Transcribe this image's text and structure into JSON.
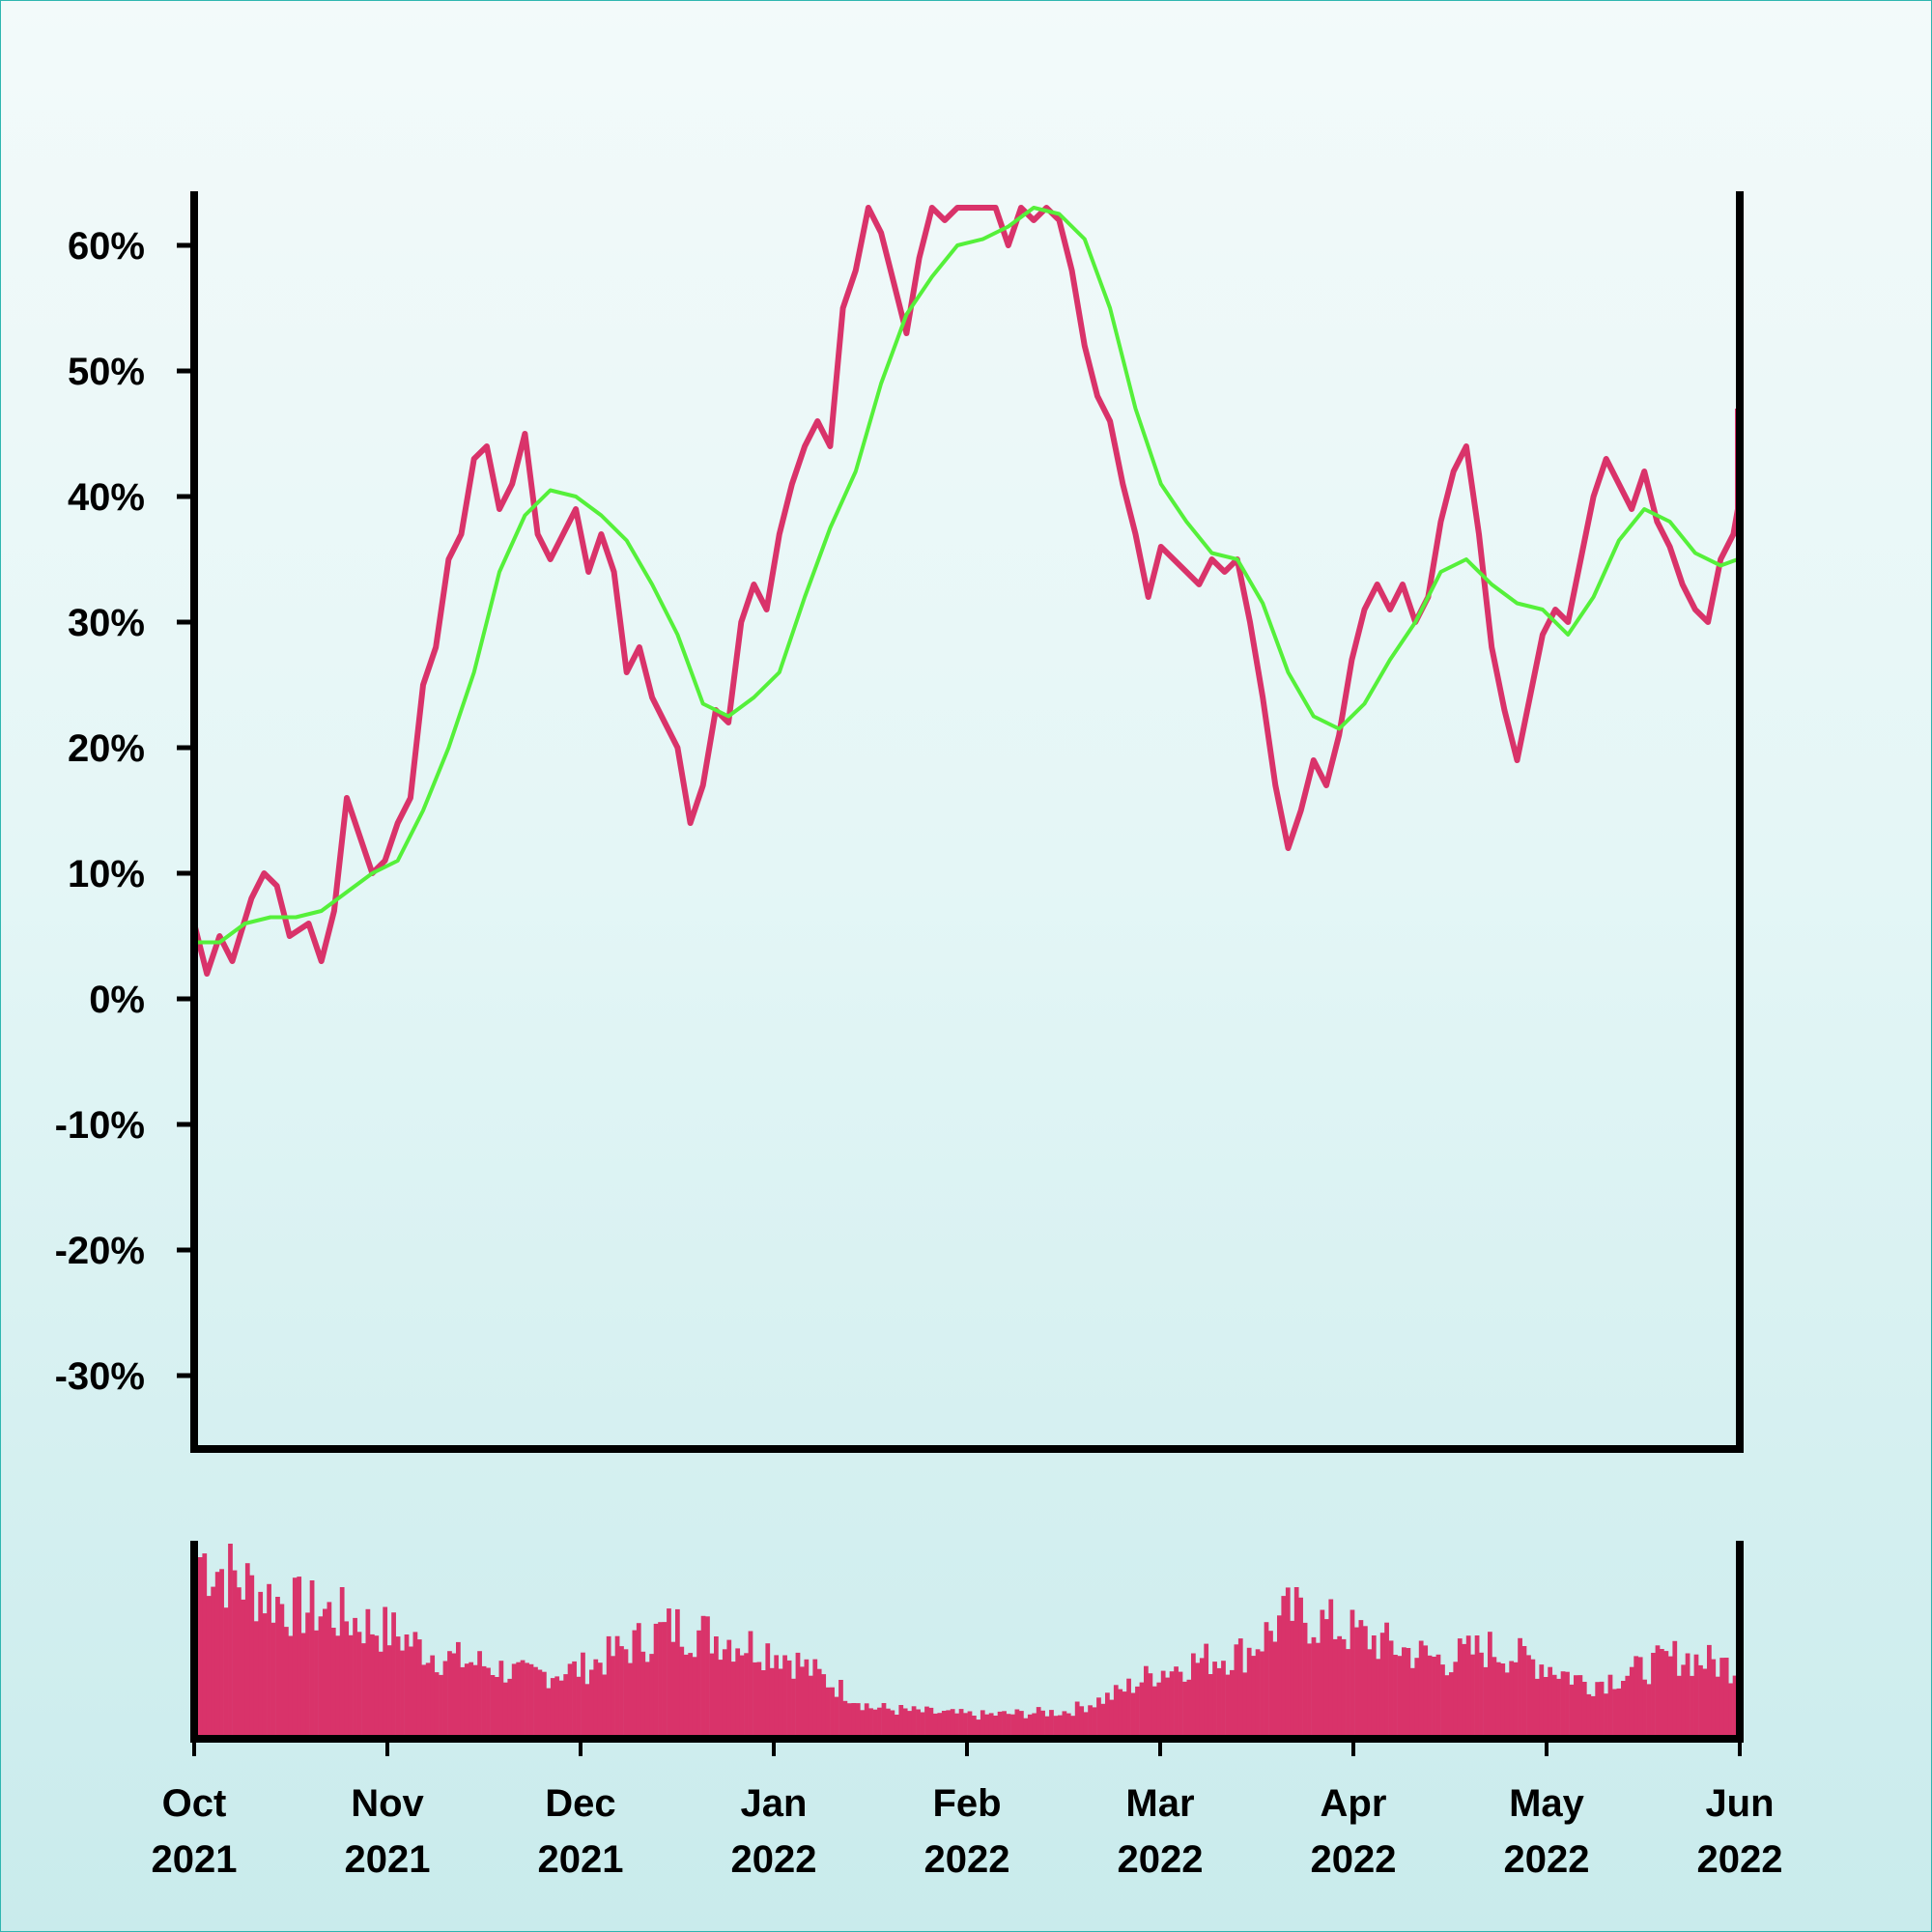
{
  "colors": {
    "price_line": "#d9336a",
    "moving_average": "#55f03a",
    "volume_bars": "#d9336a",
    "axes": "#000000",
    "background_top": "#f3fafa",
    "background_bottom": "#c9ebec"
  },
  "chart_data": [
    {
      "type": "line",
      "title": "",
      "xlabel": "",
      "ylabel": "",
      "ylim": [
        -36,
        64
      ],
      "y_ticks": [
        "60%",
        "50%",
        "40%",
        "30%",
        "20%",
        "10%",
        "0%",
        "-10%",
        "-20%",
        "-30%"
      ],
      "y_tick_values": [
        60,
        50,
        40,
        30,
        20,
        10,
        0,
        -10,
        -20,
        -30
      ],
      "grid": false,
      "legend": "none",
      "series": [
        {
          "key": "price",
          "color": "#d9336a",
          "points": [
            [
              "2021-10-01",
              6
            ],
            [
              "2021-10-03",
              2
            ],
            [
              "2021-10-05",
              5
            ],
            [
              "2021-10-07",
              3
            ],
            [
              "2021-10-10",
              8
            ],
            [
              "2021-10-12",
              10
            ],
            [
              "2021-10-14",
              9
            ],
            [
              "2021-10-16",
              5
            ],
            [
              "2021-10-19",
              6
            ],
            [
              "2021-10-21",
              3
            ],
            [
              "2021-10-23",
              7
            ],
            [
              "2021-10-25",
              16
            ],
            [
              "2021-10-27",
              13
            ],
            [
              "2021-10-29",
              10
            ],
            [
              "2021-10-31",
              11
            ],
            [
              "2021-11-02",
              14
            ],
            [
              "2021-11-04",
              16
            ],
            [
              "2021-11-06",
              25
            ],
            [
              "2021-11-08",
              28
            ],
            [
              "2021-11-10",
              35
            ],
            [
              "2021-11-12",
              37
            ],
            [
              "2021-11-14",
              43
            ],
            [
              "2021-11-16",
              44
            ],
            [
              "2021-11-18",
              39
            ],
            [
              "2021-11-20",
              41
            ],
            [
              "2021-11-22",
              45
            ],
            [
              "2021-11-24",
              37
            ],
            [
              "2021-11-26",
              35
            ],
            [
              "2021-11-28",
              37
            ],
            [
              "2021-11-30",
              39
            ],
            [
              "2021-12-02",
              34
            ],
            [
              "2021-12-04",
              37
            ],
            [
              "2021-12-06",
              34
            ],
            [
              "2021-12-08",
              26
            ],
            [
              "2021-12-10",
              28
            ],
            [
              "2021-12-12",
              24
            ],
            [
              "2021-12-14",
              22
            ],
            [
              "2021-12-16",
              20
            ],
            [
              "2021-12-18",
              14
            ],
            [
              "2021-12-20",
              17
            ],
            [
              "2021-12-22",
              23
            ],
            [
              "2021-12-24",
              22
            ],
            [
              "2021-12-26",
              30
            ],
            [
              "2021-12-28",
              33
            ],
            [
              "2021-12-30",
              31
            ],
            [
              "2022-01-01",
              37
            ],
            [
              "2022-01-03",
              41
            ],
            [
              "2022-01-05",
              44
            ],
            [
              "2022-01-07",
              46
            ],
            [
              "2022-01-09",
              44
            ],
            [
              "2022-01-11",
              55
            ],
            [
              "2022-01-13",
              58
            ],
            [
              "2022-01-15",
              63
            ],
            [
              "2022-01-17",
              61
            ],
            [
              "2022-01-19",
              57
            ],
            [
              "2022-01-21",
              53
            ],
            [
              "2022-01-23",
              59
            ],
            [
              "2022-01-25",
              63
            ],
            [
              "2022-01-27",
              62
            ],
            [
              "2022-01-29",
              63
            ],
            [
              "2022-01-31",
              63
            ],
            [
              "2022-02-02",
              63
            ],
            [
              "2022-02-04",
              63
            ],
            [
              "2022-02-06",
              60
            ],
            [
              "2022-02-08",
              63
            ],
            [
              "2022-02-10",
              62
            ],
            [
              "2022-02-12",
              63
            ],
            [
              "2022-02-14",
              62
            ],
            [
              "2022-02-16",
              58
            ],
            [
              "2022-02-18",
              52
            ],
            [
              "2022-02-20",
              48
            ],
            [
              "2022-02-22",
              46
            ],
            [
              "2022-02-24",
              41
            ],
            [
              "2022-02-26",
              37
            ],
            [
              "2022-02-28",
              32
            ],
            [
              "2022-03-02",
              36
            ],
            [
              "2022-03-04",
              35
            ],
            [
              "2022-03-06",
              34
            ],
            [
              "2022-03-08",
              33
            ],
            [
              "2022-03-10",
              35
            ],
            [
              "2022-03-12",
              34
            ],
            [
              "2022-03-14",
              35
            ],
            [
              "2022-03-16",
              30
            ],
            [
              "2022-03-18",
              24
            ],
            [
              "2022-03-20",
              17
            ],
            [
              "2022-03-22",
              12
            ],
            [
              "2022-03-24",
              15
            ],
            [
              "2022-03-26",
              19
            ],
            [
              "2022-03-28",
              17
            ],
            [
              "2022-03-30",
              21
            ],
            [
              "2022-04-01",
              27
            ],
            [
              "2022-04-03",
              31
            ],
            [
              "2022-04-05",
              33
            ],
            [
              "2022-04-07",
              31
            ],
            [
              "2022-04-09",
              33
            ],
            [
              "2022-04-11",
              30
            ],
            [
              "2022-04-13",
              32
            ],
            [
              "2022-04-15",
              38
            ],
            [
              "2022-04-17",
              42
            ],
            [
              "2022-04-19",
              44
            ],
            [
              "2022-04-21",
              37
            ],
            [
              "2022-04-23",
              28
            ],
            [
              "2022-04-25",
              23
            ],
            [
              "2022-04-27",
              19
            ],
            [
              "2022-04-29",
              24
            ],
            [
              "2022-05-01",
              29
            ],
            [
              "2022-05-03",
              31
            ],
            [
              "2022-05-05",
              30
            ],
            [
              "2022-05-07",
              35
            ],
            [
              "2022-05-09",
              40
            ],
            [
              "2022-05-11",
              43
            ],
            [
              "2022-05-13",
              41
            ],
            [
              "2022-05-15",
              39
            ],
            [
              "2022-05-17",
              42
            ],
            [
              "2022-05-19",
              38
            ],
            [
              "2022-05-21",
              36
            ],
            [
              "2022-05-23",
              33
            ],
            [
              "2022-05-25",
              31
            ],
            [
              "2022-05-27",
              30
            ],
            [
              "2022-05-29",
              35
            ],
            [
              "2022-05-31",
              37
            ],
            [
              "2022-06-02",
              39
            ],
            [
              "2022-06-04",
              38
            ],
            [
              "2022-06-06",
              40
            ],
            [
              "2022-06-08",
              37
            ],
            [
              "2022-06-09",
              47
            ]
          ]
        },
        {
          "key": "moving_average",
          "color": "#55f03a",
          "points": [
            [
              "2021-10-01",
              4.5
            ],
            [
              "2021-10-05",
              4.5
            ],
            [
              "2021-10-09",
              6
            ],
            [
              "2021-10-13",
              6.5
            ],
            [
              "2021-10-17",
              6.5
            ],
            [
              "2021-10-21",
              7
            ],
            [
              "2021-10-25",
              8.5
            ],
            [
              "2021-10-29",
              10
            ],
            [
              "2021-11-02",
              11
            ],
            [
              "2021-11-06",
              15
            ],
            [
              "2021-11-10",
              20
            ],
            [
              "2021-11-14",
              26
            ],
            [
              "2021-11-18",
              34
            ],
            [
              "2021-11-22",
              38.5
            ],
            [
              "2021-11-26",
              40.5
            ],
            [
              "2021-11-30",
              40
            ],
            [
              "2021-12-04",
              38.5
            ],
            [
              "2021-12-08",
              36.5
            ],
            [
              "2021-12-12",
              33
            ],
            [
              "2021-12-16",
              29
            ],
            [
              "2021-12-20",
              23.5
            ],
            [
              "2021-12-24",
              22.5
            ],
            [
              "2021-12-28",
              24
            ],
            [
              "2022-01-01",
              26
            ],
            [
              "2022-01-05",
              32
            ],
            [
              "2022-01-09",
              37.5
            ],
            [
              "2022-01-13",
              42
            ],
            [
              "2022-01-17",
              49
            ],
            [
              "2022-01-21",
              54.5
            ],
            [
              "2022-01-25",
              57.5
            ],
            [
              "2022-01-29",
              60
            ],
            [
              "2022-02-02",
              60.5
            ],
            [
              "2022-02-06",
              61.5
            ],
            [
              "2022-02-10",
              63
            ],
            [
              "2022-02-14",
              62.5
            ],
            [
              "2022-02-18",
              60.5
            ],
            [
              "2022-02-22",
              55
            ],
            [
              "2022-02-26",
              47
            ],
            [
              "2022-03-02",
              41
            ],
            [
              "2022-03-06",
              38
            ],
            [
              "2022-03-10",
              35.5
            ],
            [
              "2022-03-14",
              35
            ],
            [
              "2022-03-18",
              31.5
            ],
            [
              "2022-03-22",
              26
            ],
            [
              "2022-03-26",
              22.5
            ],
            [
              "2022-03-30",
              21.5
            ],
            [
              "2022-04-03",
              23.5
            ],
            [
              "2022-04-07",
              27
            ],
            [
              "2022-04-11",
              30
            ],
            [
              "2022-04-15",
              34
            ],
            [
              "2022-04-19",
              35
            ],
            [
              "2022-04-23",
              33
            ],
            [
              "2022-04-27",
              31.5
            ],
            [
              "2022-05-01",
              31
            ],
            [
              "2022-05-05",
              29
            ],
            [
              "2022-05-09",
              32
            ],
            [
              "2022-05-13",
              36.5
            ],
            [
              "2022-05-17",
              39
            ],
            [
              "2022-05-21",
              38
            ],
            [
              "2022-05-25",
              35.5
            ],
            [
              "2022-05-29",
              34.5
            ],
            [
              "2022-06-02",
              35
            ],
            [
              "2022-06-06",
              35.5
            ],
            [
              "2022-06-09",
              36.5
            ]
          ]
        }
      ]
    },
    {
      "type": "bar",
      "title": "",
      "xlabel": "",
      "ylabel": "",
      "x_ticks": [
        "Oct 2021",
        "Nov 2021",
        "Dec 2021",
        "Jan 2022",
        "Feb 2022",
        "Mar 2022",
        "Apr 2022",
        "May 2022",
        "Jun 2022"
      ],
      "volume_relative_profile": [
        [
          "2021-10-01",
          0.92
        ],
        [
          "2021-10-08",
          0.78
        ],
        [
          "2021-10-15",
          0.66
        ],
        [
          "2021-10-22",
          0.62
        ],
        [
          "2021-11-01",
          0.52
        ],
        [
          "2021-11-08",
          0.4
        ],
        [
          "2021-11-15",
          0.36
        ],
        [
          "2021-11-22",
          0.3
        ],
        [
          "2021-12-01",
          0.34
        ],
        [
          "2021-12-08",
          0.45
        ],
        [
          "2021-12-15",
          0.55
        ],
        [
          "2021-12-22",
          0.5
        ],
        [
          "2022-01-01",
          0.42
        ],
        [
          "2022-01-08",
          0.28
        ],
        [
          "2022-01-15",
          0.14
        ],
        [
          "2022-01-22",
          0.12
        ],
        [
          "2022-02-01",
          0.1
        ],
        [
          "2022-02-08",
          0.11
        ],
        [
          "2022-02-15",
          0.12
        ],
        [
          "2022-02-22",
          0.2
        ],
        [
          "2022-03-01",
          0.32
        ],
        [
          "2022-03-08",
          0.38
        ],
        [
          "2022-03-15",
          0.42
        ],
        [
          "2022-03-22",
          0.62
        ],
        [
          "2022-04-01",
          0.52
        ],
        [
          "2022-04-08",
          0.44
        ],
        [
          "2022-04-15",
          0.38
        ],
        [
          "2022-04-22",
          0.44
        ],
        [
          "2022-05-01",
          0.36
        ],
        [
          "2022-05-08",
          0.26
        ],
        [
          "2022-05-15",
          0.32
        ],
        [
          "2022-05-22",
          0.4
        ],
        [
          "2022-06-01",
          0.34
        ],
        [
          "2022-06-09",
          0.3
        ]
      ]
    }
  ]
}
